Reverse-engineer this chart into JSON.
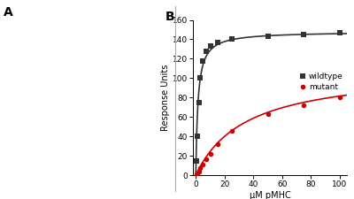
{
  "panel_label_A": "A",
  "panel_label_B": "B",
  "xlabel": "μM pMHC",
  "ylabel": "Response Units",
  "xlim": [
    -2,
    105
  ],
  "ylim": [
    0,
    160
  ],
  "yticks": [
    0,
    20,
    40,
    60,
    80,
    100,
    120,
    140,
    160
  ],
  "xticks": [
    0,
    20,
    40,
    60,
    80,
    100
  ],
  "wildtype_x": [
    0.5,
    1,
    2,
    3,
    5,
    7,
    10,
    15,
    25,
    50,
    75,
    100
  ],
  "wildtype_y": [
    15,
    40,
    75,
    100,
    118,
    128,
    133,
    137,
    140,
    143,
    145,
    147
  ],
  "mutant_x": [
    0.5,
    1,
    2,
    3,
    5,
    7,
    10,
    15,
    25,
    50,
    75,
    100
  ],
  "mutant_y": [
    1,
    2,
    4,
    7,
    11,
    16,
    22,
    32,
    46,
    63,
    72,
    80
  ],
  "wt_Kd": 1.5,
  "wt_Rmax": 148,
  "mut_Kd": 35,
  "mut_Rmax": 110,
  "wildtype_color": "#333333",
  "mutant_color": "#cc0000",
  "marker_size": 4,
  "line_width": 1.2,
  "background_color": "#ffffff",
  "label_fontsize": 7,
  "tick_fontsize": 6.5,
  "panel_label_fontsize": 10,
  "legend_fontsize": 6.5,
  "left_panel_color": "#f0f0f0",
  "spine_linewidth": 0.7
}
